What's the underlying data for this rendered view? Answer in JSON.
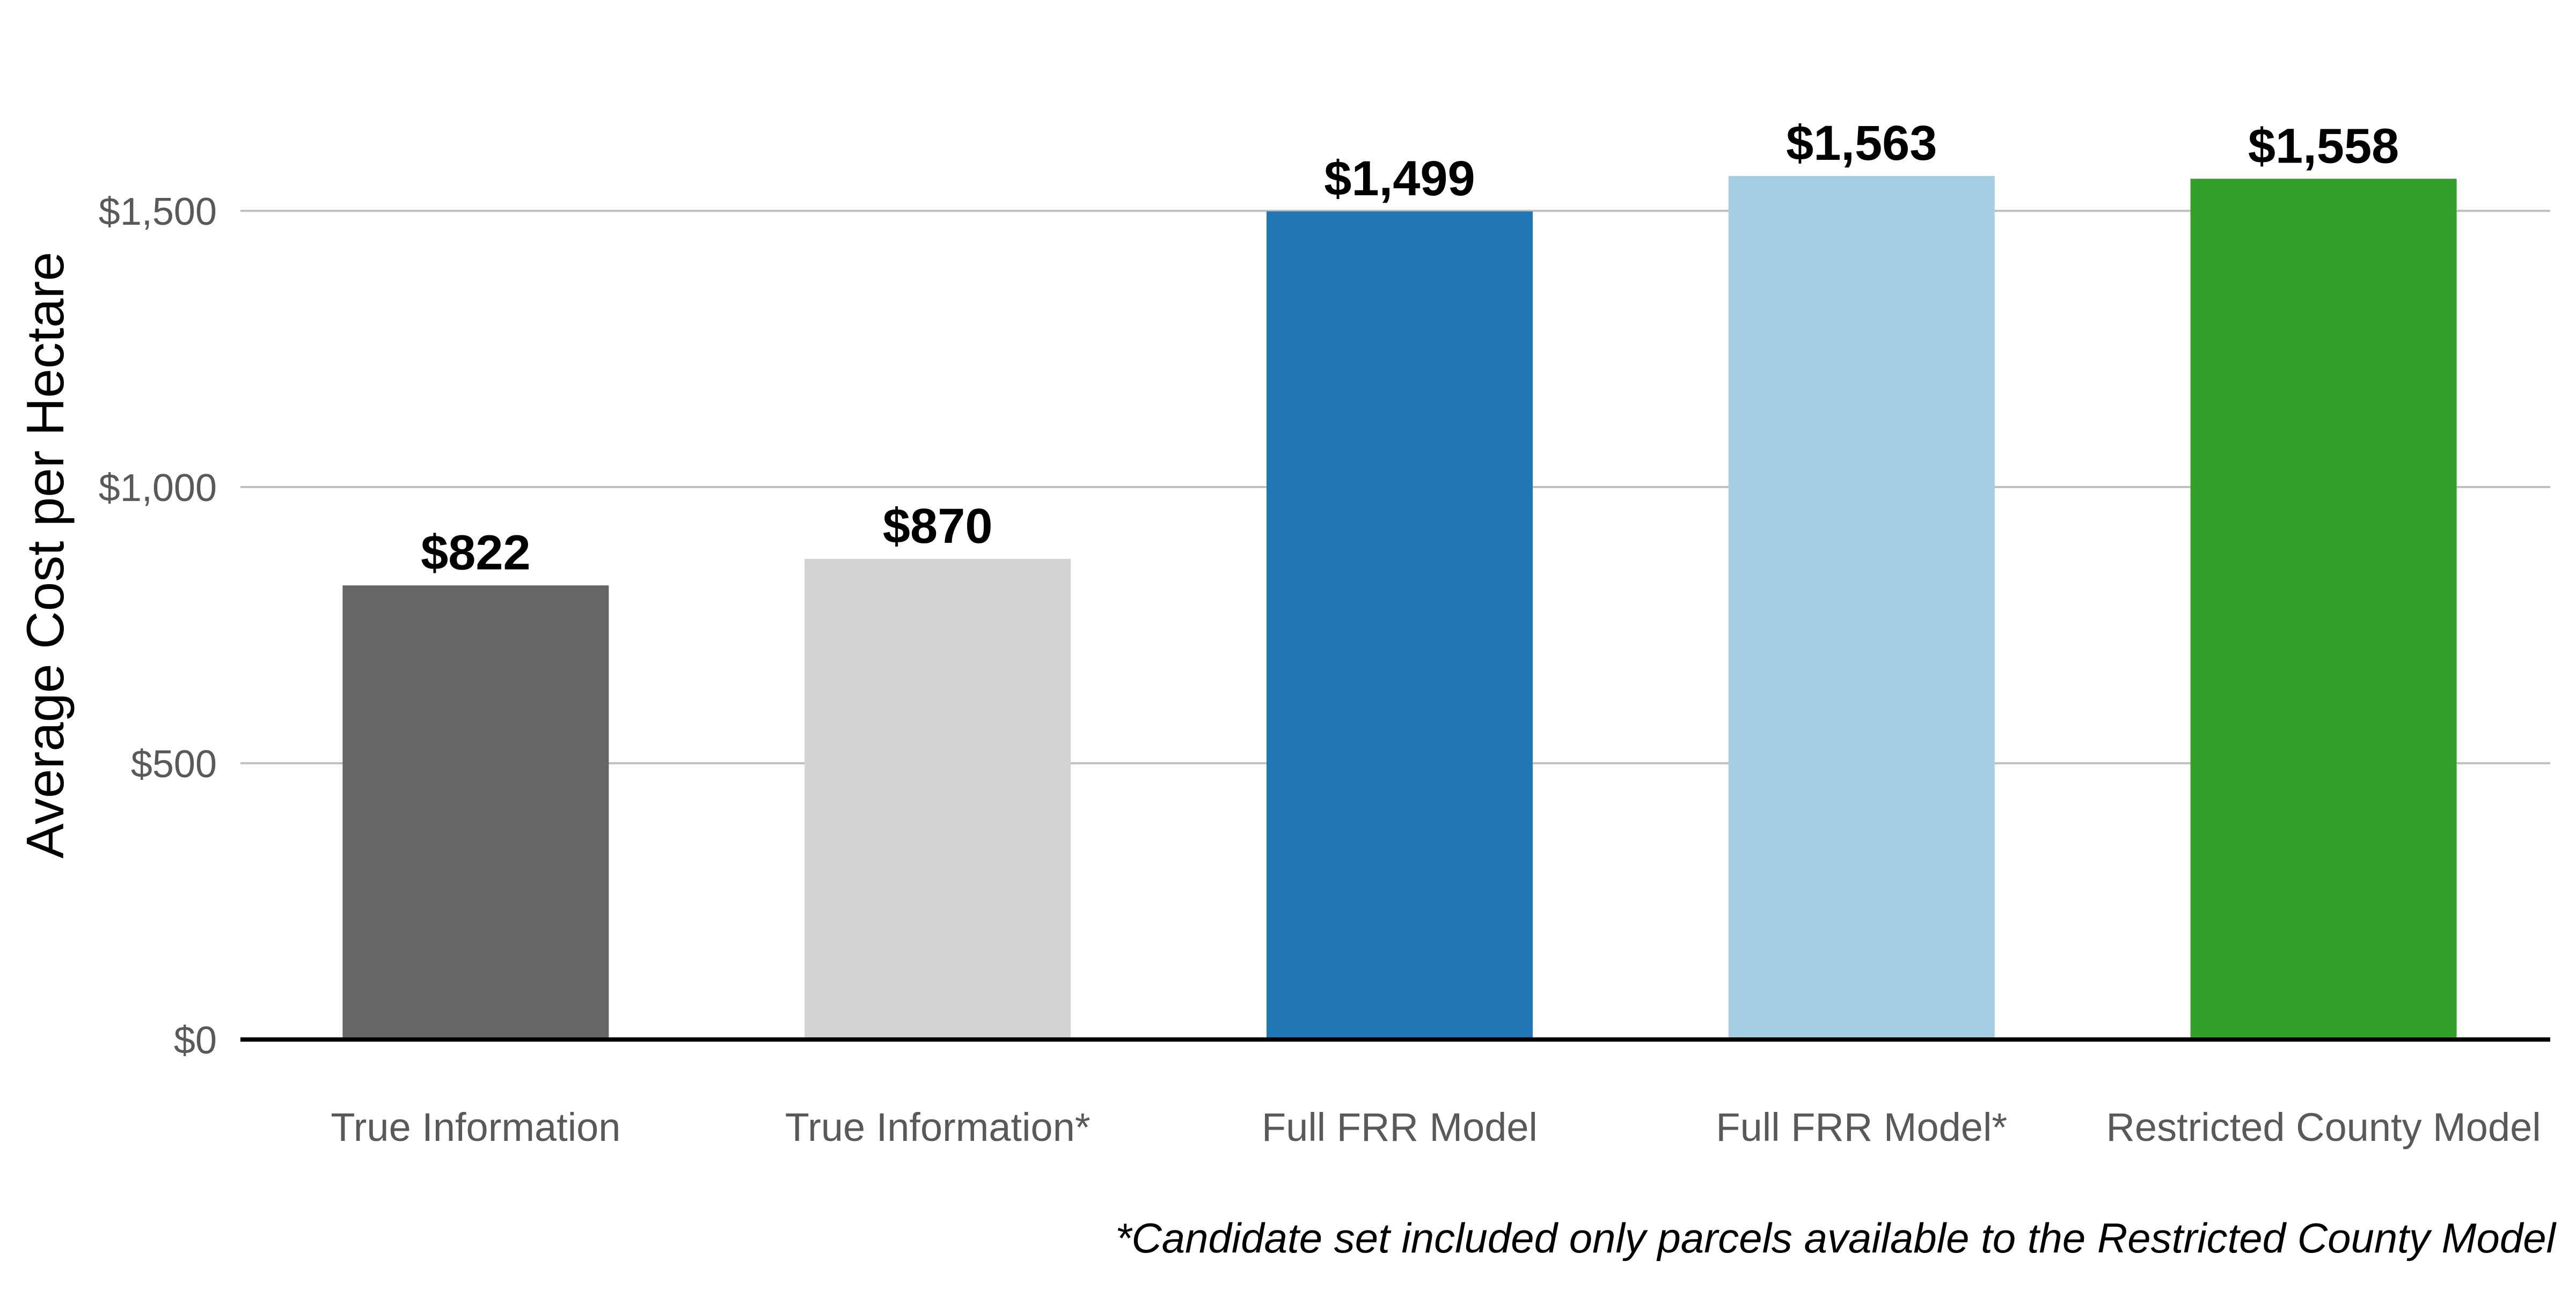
{
  "chart_data": {
    "type": "bar",
    "categories": [
      "True Information",
      "True Information*",
      "Full FRR Model",
      "Full FRR Model*",
      "Restricted County Model"
    ],
    "values": [
      822,
      870,
      1499,
      1563,
      1558
    ],
    "data_labels": [
      "$822",
      "$870",
      "$1,499",
      "$1,563",
      "$1,558"
    ],
    "colors": [
      "#666666",
      "#d3d3d3",
      "#2178b4",
      "#a6cee3",
      "#33a02c"
    ],
    "ylabel": "Average Cost per Hectare",
    "xlabel": "",
    "title": "",
    "ylim": [
      0,
      1700
    ],
    "yticks": [
      0,
      500,
      1000,
      1500
    ],
    "ytick_labels": [
      "$0",
      "$500",
      "$1,000",
      "$1,500"
    ],
    "grid": true,
    "gridline_color": "#c0c0c0",
    "axis_color": "#000000",
    "footnote": "*Candidate set included only parcels available to the Restricted County Model"
  }
}
